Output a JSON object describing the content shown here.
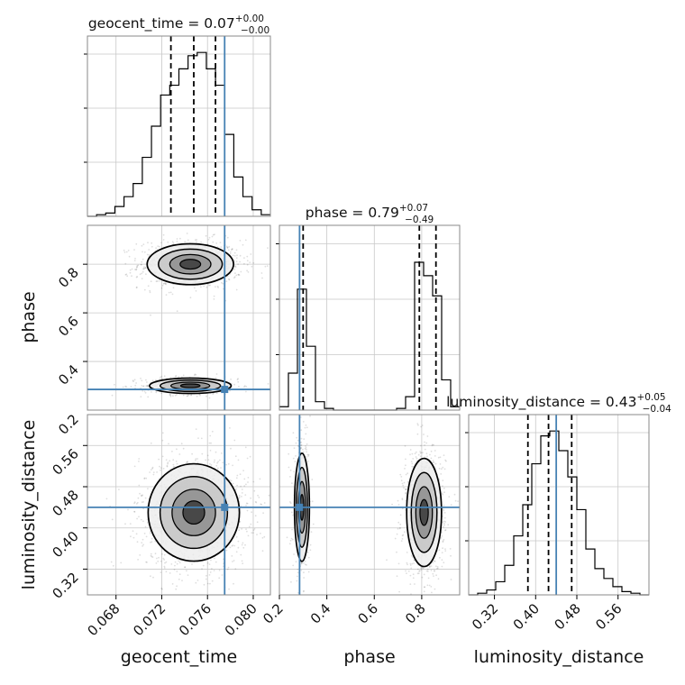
{
  "chart_data": {
    "type": "corner",
    "parameters": [
      {
        "name": "geocent_time",
        "xlabel": "geocent_time",
        "range": [
          0.0655,
          0.0815
        ],
        "ticks": [
          0.068,
          0.072,
          0.076,
          0.08
        ],
        "tick_labels": [
          "0.068",
          "0.072",
          "0.076",
          "0.080"
        ],
        "injection": 0.0775,
        "quantiles": [
          0.0728,
          0.0748,
          0.0767
        ],
        "title_main": "geocent_time = 0.07",
        "title_plus": "+0.00",
        "title_minus": "−0.00",
        "hist_bins": [
          0.0655,
          0.0663,
          0.0671,
          0.0679,
          0.0687,
          0.0695,
          0.0703,
          0.0711,
          0.0719,
          0.0727,
          0.0735,
          0.0743,
          0.0751,
          0.0759,
          0.0767,
          0.0775,
          0.0783,
          0.0791,
          0.0799,
          0.0807,
          0.0815
        ],
        "hist_counts": [
          0.0,
          0.01,
          0.02,
          0.06,
          0.12,
          0.2,
          0.36,
          0.55,
          0.74,
          0.8,
          0.9,
          0.98,
          1.0,
          0.9,
          0.8,
          0.5,
          0.24,
          0.12,
          0.04,
          0.01
        ]
      },
      {
        "name": "phase",
        "ylabel": "phase",
        "xlabel": "phase",
        "range": [
          0.2,
          0.96
        ],
        "ticks": [
          0.2,
          0.4,
          0.6,
          0.8
        ],
        "tick_labels": [
          "0.2",
          "0.4",
          "0.6",
          "0.8"
        ],
        "injection": 0.285,
        "quantiles": [
          0.3,
          0.79,
          0.86
        ],
        "title_main": "phase = 0.79",
        "title_plus": "+0.07",
        "title_minus": "−0.49",
        "hist_bins": [
          0.2,
          0.238,
          0.276,
          0.314,
          0.352,
          0.39,
          0.428,
          0.466,
          0.504,
          0.542,
          0.58,
          0.618,
          0.656,
          0.694,
          0.732,
          0.77,
          0.808,
          0.846,
          0.884,
          0.922,
          0.96
        ],
        "hist_counts": [
          0.02,
          0.22,
          0.72,
          0.38,
          0.05,
          0.01,
          0.0,
          0.0,
          0.0,
          0.0,
          0.0,
          0.0,
          0.0,
          0.01,
          0.08,
          0.88,
          0.8,
          0.68,
          0.18,
          0.02
        ]
      },
      {
        "name": "luminosity_distance",
        "ylabel": "luminosity_distance",
        "xlabel": "luminosity_distance",
        "range": [
          0.27,
          0.62
        ],
        "ticks": [
          0.32,
          0.4,
          0.48,
          0.56
        ],
        "tick_labels": [
          "0.32",
          "0.40",
          "0.48",
          "0.56"
        ],
        "injection": 0.44,
        "quantiles": [
          0.385,
          0.425,
          0.47
        ],
        "title_main": "luminosity_distance = 0.43",
        "title_plus": "+0.05",
        "title_minus": "−0.04",
        "hist_bins": [
          0.27,
          0.2875,
          0.305,
          0.3225,
          0.34,
          0.3575,
          0.375,
          0.3925,
          0.41,
          0.4275,
          0.445,
          0.4625,
          0.48,
          0.4975,
          0.515,
          0.5325,
          0.55,
          0.5675,
          0.585,
          0.6025,
          0.62
        ],
        "hist_counts": [
          0.0,
          0.01,
          0.03,
          0.08,
          0.18,
          0.36,
          0.55,
          0.8,
          0.97,
          1.0,
          0.88,
          0.72,
          0.52,
          0.28,
          0.16,
          0.1,
          0.05,
          0.02,
          0.01,
          0.0
        ]
      }
    ],
    "phase_tick_labels_2d": [
      "0.4",
      "0.6",
      "0.8"
    ],
    "phase_ticks_2d": [
      0.4,
      0.6,
      0.8
    ],
    "bottom_phase_ticks": [
      0.2,
      0.4,
      0.6,
      0.8
    ],
    "colors": {
      "injection": "#4682b4",
      "hist": "#000000",
      "grid": "#c8c8c8",
      "contour": "#000000",
      "axes_edge": "#888888"
    },
    "grid": true,
    "samples_2d": {
      "geocent_time_phase": [
        {
          "x": 0.0745,
          "y": 0.8,
          "sx": 0.0018,
          "sy": 0.04,
          "weight": 0.65
        },
        {
          "x": 0.0745,
          "y": 0.3,
          "sx": 0.0017,
          "sy": 0.015,
          "weight": 0.35
        }
      ],
      "geocent_time_luminosity_distance": [
        {
          "x": 0.0748,
          "y": 0.43,
          "sx": 0.0019,
          "sy": 0.045,
          "weight": 1.0
        }
      ],
      "phase_luminosity_distance": [
        {
          "x": 0.295,
          "y": 0.44,
          "sx": 0.015,
          "sy": 0.05,
          "weight": 0.33
        },
        {
          "x": 0.81,
          "y": 0.43,
          "sx": 0.035,
          "sy": 0.05,
          "weight": 0.67
        }
      ]
    }
  }
}
